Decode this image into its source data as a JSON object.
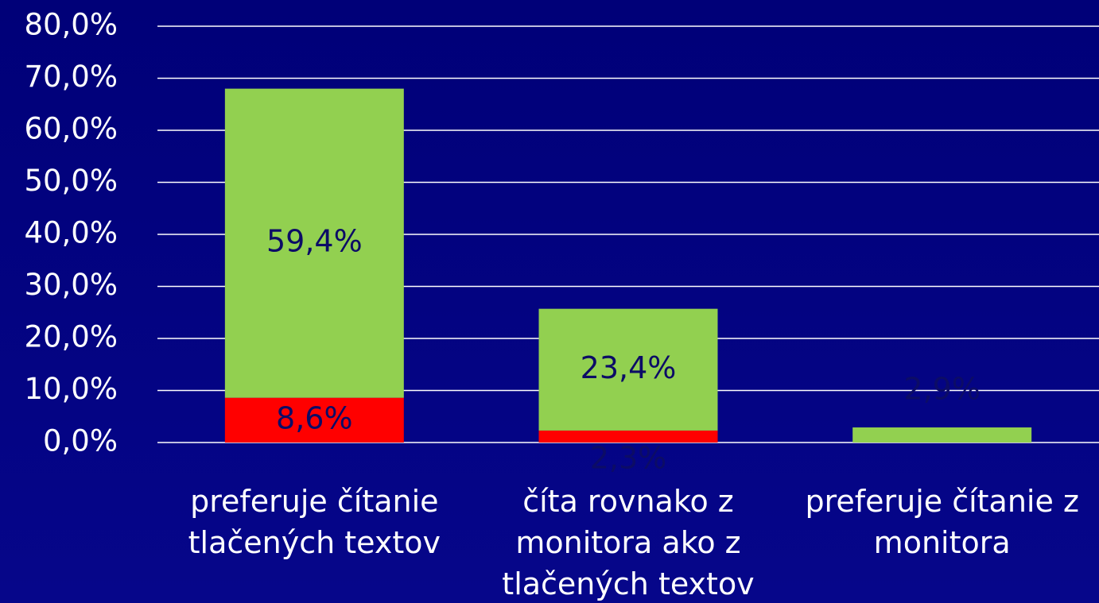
{
  "chart_data": {
    "type": "stacked_bar",
    "categories": [
      "preferuje čítanie tlačených textov",
      "číta rovnako z monitora ako z tlačených textov",
      "preferuje čítanie z monitora"
    ],
    "series": [
      {
        "color": "#ff0000",
        "values": [
          8.6,
          2.3,
          null
        ],
        "value_labels": [
          "8,6%",
          "2,3%",
          null
        ]
      },
      {
        "color": "#92d050",
        "values": [
          59.4,
          23.4,
          2.9
        ],
        "value_labels": [
          "59,4%",
          "23,4%",
          "2,9%"
        ]
      }
    ],
    "ylim": [
      0,
      80
    ],
    "yticks": [
      {
        "value": 0,
        "label": "0,0%"
      },
      {
        "value": 10,
        "label": "10,0%"
      },
      {
        "value": 20,
        "label": "20,0%"
      },
      {
        "value": 30,
        "label": "30,0%"
      },
      {
        "value": 40,
        "label": "40,0%"
      },
      {
        "value": 50,
        "label": "50,0%"
      },
      {
        "value": 60,
        "label": "60,0%"
      },
      {
        "value": 70,
        "label": "70,0%"
      },
      {
        "value": 80,
        "label": "80,0%"
      }
    ],
    "grid": true
  }
}
